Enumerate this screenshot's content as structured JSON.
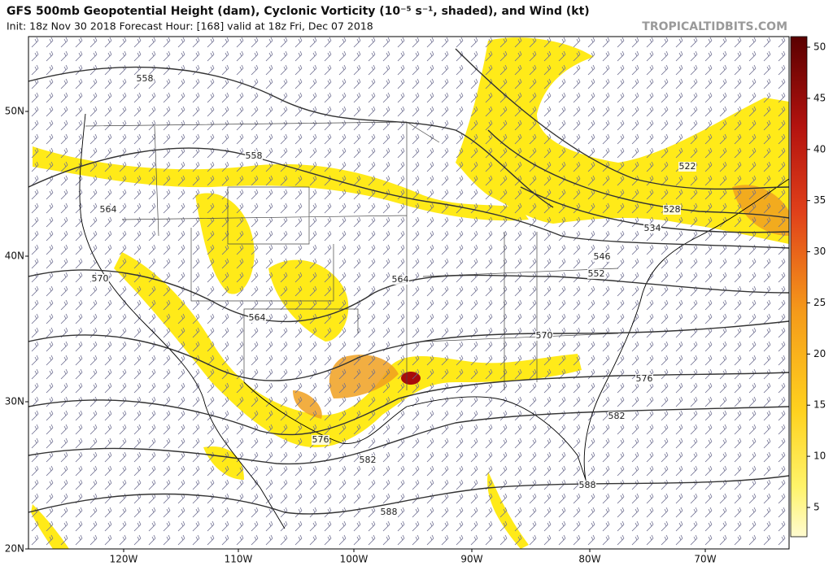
{
  "header": {
    "title": "GFS 500mb Geopotential Height (dam), Cyclonic Vorticity (10⁻⁵ s⁻¹, shaded), and Wind (kt)",
    "subtitle": "Init: 18z Nov 30 2018   Forecast Hour: [168]   valid at 18z Fri, Dec 07 2018",
    "source": "TROPICALTIDBITS.COM"
  },
  "map": {
    "lat_labels": [
      "50N",
      "40N",
      "30N",
      "20N"
    ],
    "lon_labels": [
      "120W",
      "110W",
      "100W",
      "90W",
      "80W",
      "70W"
    ],
    "contour_labels": [
      "558",
      "558",
      "564",
      "570",
      "564",
      "564",
      "522",
      "528",
      "534",
      "546",
      "552",
      "570",
      "576",
      "582",
      "576",
      "582",
      "588",
      "588"
    ]
  },
  "colorbar": {
    "ticks": [
      "5",
      "10",
      "15",
      "20",
      "25",
      "30",
      "35",
      "40",
      "45",
      "50"
    ]
  }
}
